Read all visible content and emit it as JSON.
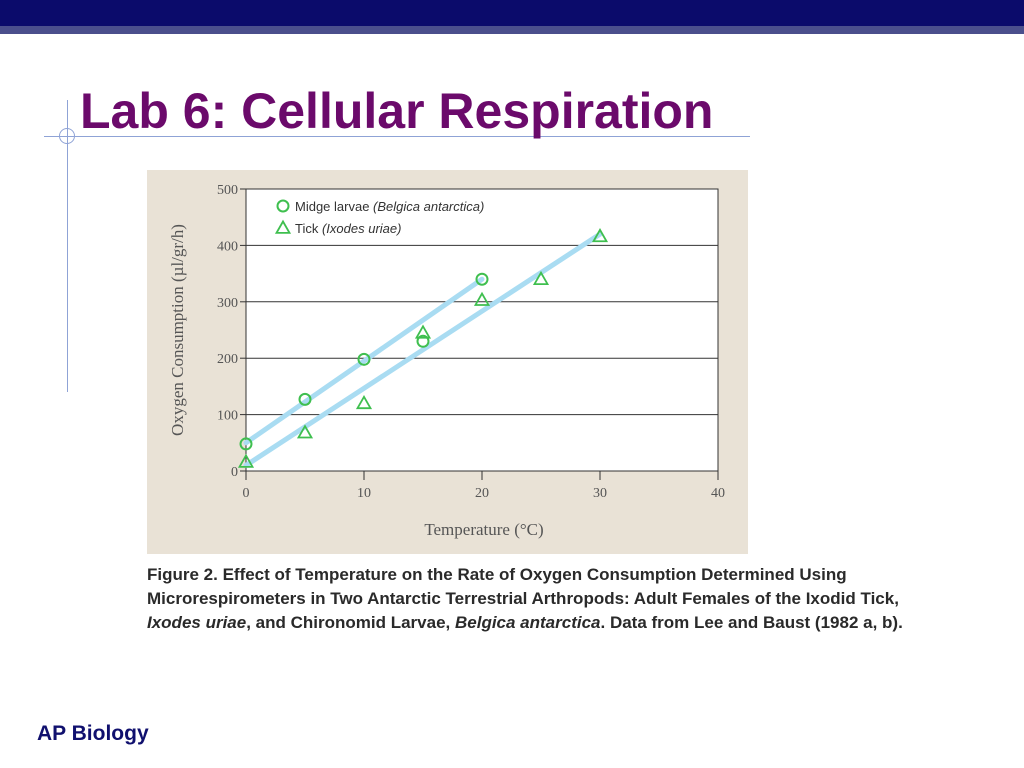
{
  "slide": {
    "title": "Lab 6: Cellular Respiration",
    "footer": "AP Biology"
  },
  "caption": {
    "label": "Figure 2.",
    "segments": [
      {
        "text": "Figure 2. Effect of Temperature on the Rate of Oxygen Consumption Determined Using Microrespirometers in Two Antarctic Terrestrial Arthropods: Adult Females of the Ixodid Tick, ",
        "italic": false
      },
      {
        "text": "Ixodes uriae",
        "italic": true
      },
      {
        "text": ", and Chironomid Larvae, ",
        "italic": false
      },
      {
        "text": "Belgica antarctica",
        "italic": true
      },
      {
        "text": ". Data from Lee and Baust (1982 a, b).",
        "italic": false
      }
    ]
  },
  "colors": {
    "title": "#6b0a6b",
    "header_bar": "#0b0b6b",
    "marker": "#3fbf4f",
    "trendline": "#a9dcf2",
    "figure_bg": "#e9e2d6"
  },
  "chart_data": {
    "type": "scatter",
    "xlabel": "Temperature (°C)",
    "ylabel": "Oxygen Consumption (µl/gr/h)",
    "xlim": [
      0,
      40
    ],
    "ylim": [
      0,
      500
    ],
    "xticks": [
      0,
      10,
      20,
      30,
      40
    ],
    "yticks": [
      0,
      100,
      200,
      300,
      400,
      500
    ],
    "grid": "horizontal",
    "legend_position": "top-left",
    "series": [
      {
        "name": "Midge larvae",
        "name_italic": "(Belgica antarctica)",
        "marker": "circle",
        "points": [
          {
            "x": 0,
            "y": 48
          },
          {
            "x": 5,
            "y": 127
          },
          {
            "x": 10,
            "y": 198
          },
          {
            "x": 15,
            "y": 230
          },
          {
            "x": 20,
            "y": 340
          }
        ],
        "trendline": [
          {
            "x": 0,
            "y": 50
          },
          {
            "x": 20,
            "y": 340
          }
        ]
      },
      {
        "name": "Tick",
        "name_italic": "(Ixodes uriae)",
        "marker": "triangle",
        "points": [
          {
            "x": 0,
            "y": 16
          },
          {
            "x": 5,
            "y": 68
          },
          {
            "x": 10,
            "y": 120
          },
          {
            "x": 15,
            "y": 245
          },
          {
            "x": 20,
            "y": 303
          },
          {
            "x": 25,
            "y": 340
          },
          {
            "x": 30,
            "y": 416
          }
        ],
        "trendline": [
          {
            "x": 0,
            "y": 10
          },
          {
            "x": 30,
            "y": 420
          }
        ]
      }
    ]
  }
}
